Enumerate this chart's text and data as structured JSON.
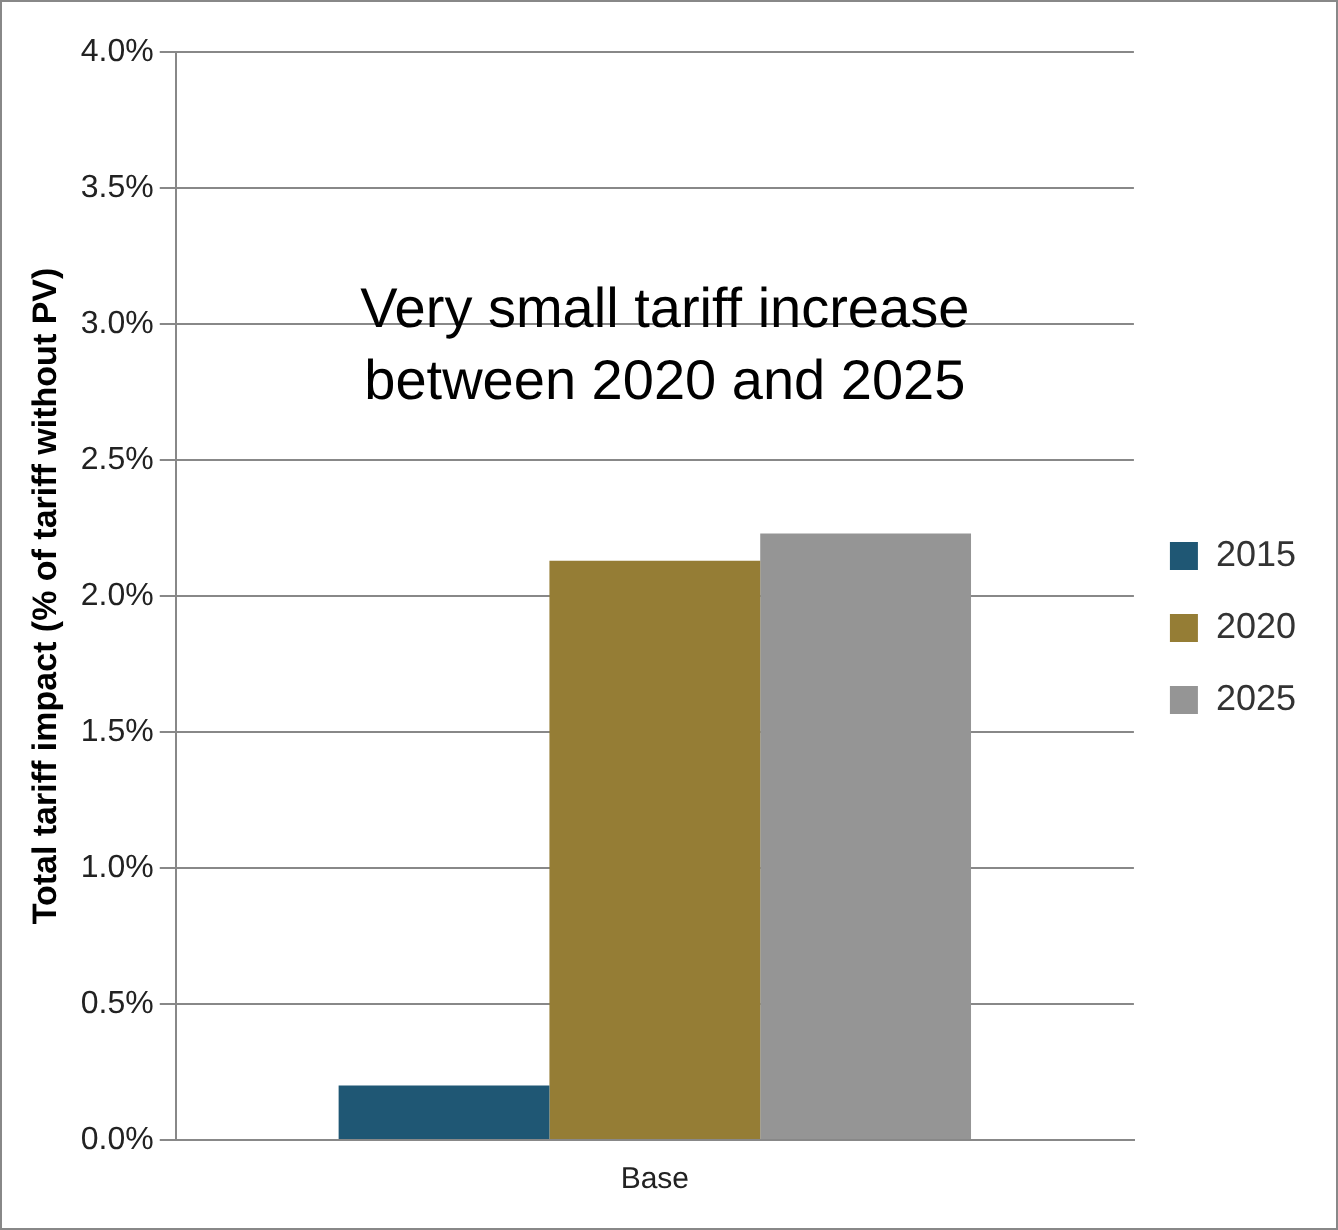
{
  "chart_data": {
    "type": "bar",
    "ylabel": "Total tariff impact (% of tariff without PV)",
    "categories": [
      "Base"
    ],
    "series": [
      {
        "name": "2015",
        "color": "#1f5774",
        "values": [
          0.2
        ]
      },
      {
        "name": "2020",
        "color": "#957d35",
        "values": [
          2.13
        ]
      },
      {
        "name": "2025",
        "color": "#959595",
        "values": [
          2.23
        ]
      }
    ],
    "ylim": [
      0,
      4
    ],
    "yticks": [
      {
        "value": 0,
        "label": "0.0%"
      },
      {
        "value": 0.5,
        "label": "0.5%"
      },
      {
        "value": 1,
        "label": "1.0%"
      },
      {
        "value": 1.5,
        "label": "1.5%"
      },
      {
        "value": 2,
        "label": "2.0%"
      },
      {
        "value": 2.5,
        "label": "2.5%"
      },
      {
        "value": 3,
        "label": "3.0%"
      },
      {
        "value": 3.5,
        "label": "3.5%"
      },
      {
        "value": 4,
        "label": "4.0%"
      }
    ],
    "grid": "y",
    "legend": "right",
    "annotations": [
      "Very small tariff increase\nbetween 2020 and 2025"
    ]
  }
}
